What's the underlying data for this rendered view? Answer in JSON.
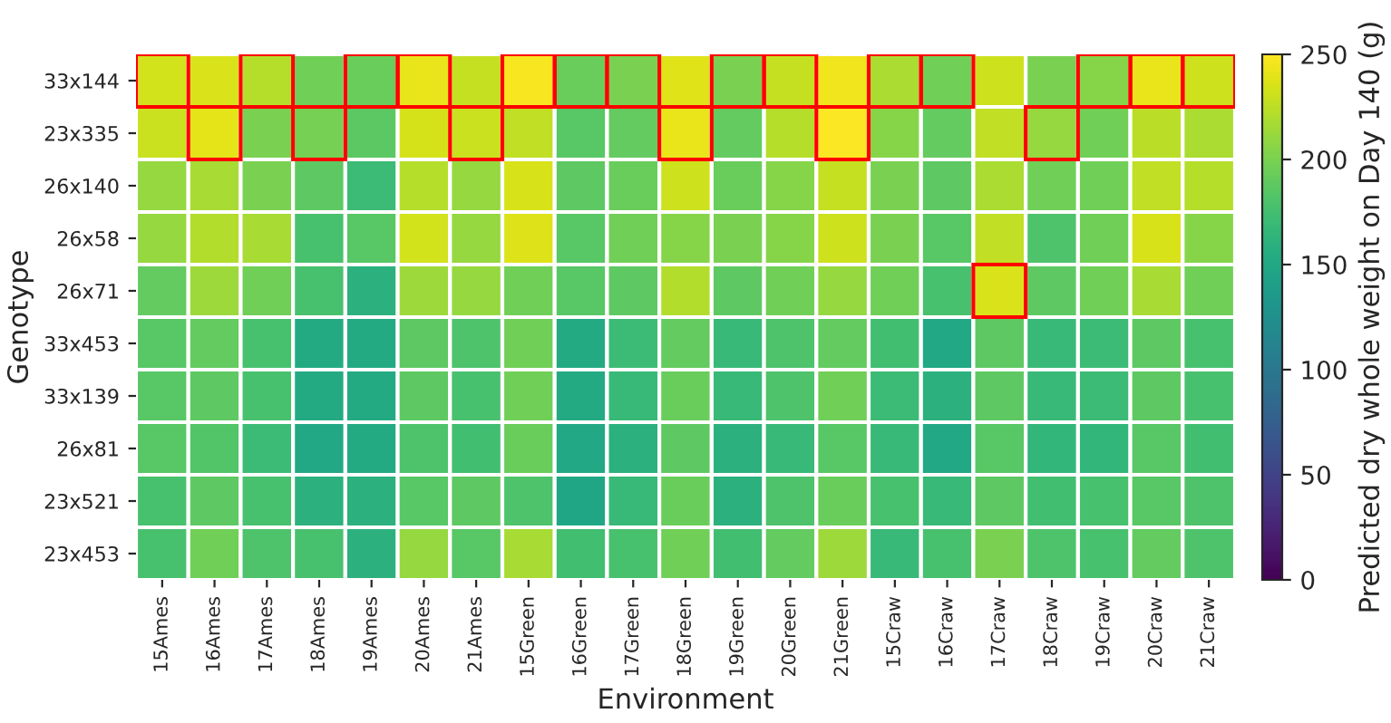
{
  "chart_data": {
    "type": "heatmap",
    "xlabel": "Environment",
    "ylabel": "Genotype",
    "clabel": "Predicted dry whole weight on Day 140 (g)",
    "categories": [
      "15Ames",
      "16Ames",
      "17Ames",
      "18Ames",
      "19Ames",
      "20Ames",
      "21Ames",
      "15Green",
      "16Green",
      "17Green",
      "18Green",
      "19Green",
      "20Green",
      "21Green",
      "15Craw",
      "16Craw",
      "17Craw",
      "18Craw",
      "19Craw",
      "20Craw",
      "21Craw"
    ],
    "y_categories": [
      "33x144",
      "23x335",
      "26x140",
      "26x58",
      "26x71",
      "33x453",
      "33x139",
      "26x81",
      "23x521",
      "23x453"
    ],
    "cells": [
      [
        233,
        236,
        222,
        196,
        193,
        242,
        228,
        248,
        193,
        200,
        238,
        200,
        228,
        245,
        218,
        196,
        231,
        200,
        205,
        242,
        231
      ],
      [
        230,
        240,
        200,
        198,
        187,
        234,
        230,
        226,
        185,
        190,
        242,
        190,
        222,
        249,
        205,
        190,
        226,
        210,
        196,
        224,
        218
      ],
      [
        210,
        217,
        200,
        188,
        170,
        222,
        210,
        235,
        188,
        193,
        231,
        193,
        205,
        228,
        200,
        188,
        218,
        196,
        196,
        226,
        222
      ],
      [
        210,
        221,
        217,
        177,
        185,
        233,
        210,
        237,
        185,
        196,
        205,
        200,
        205,
        231,
        200,
        185,
        226,
        180,
        196,
        235,
        205
      ],
      [
        190,
        213,
        196,
        177,
        160,
        213,
        210,
        196,
        185,
        188,
        221,
        188,
        196,
        210,
        196,
        177,
        236,
        188,
        196,
        217,
        196
      ],
      [
        185,
        190,
        177,
        152,
        152,
        188,
        180,
        196,
        152,
        170,
        190,
        168,
        180,
        190,
        174,
        150,
        188,
        168,
        170,
        188,
        177
      ],
      [
        185,
        188,
        177,
        152,
        152,
        188,
        177,
        196,
        152,
        168,
        193,
        168,
        180,
        196,
        170,
        160,
        188,
        168,
        170,
        188,
        177
      ],
      [
        185,
        182,
        170,
        150,
        152,
        180,
        174,
        193,
        150,
        160,
        188,
        160,
        168,
        185,
        168,
        150,
        185,
        165,
        165,
        185,
        174
      ],
      [
        177,
        188,
        177,
        160,
        160,
        185,
        188,
        180,
        148,
        168,
        193,
        160,
        180,
        193,
        177,
        168,
        188,
        174,
        177,
        185,
        180
      ],
      [
        177,
        196,
        180,
        177,
        160,
        210,
        185,
        217,
        174,
        177,
        196,
        174,
        190,
        213,
        168,
        177,
        200,
        180,
        177,
        190,
        180
      ]
    ],
    "clim": [
      0,
      250
    ],
    "cticks": [
      0,
      50,
      100,
      150,
      200,
      250
    ]
  }
}
